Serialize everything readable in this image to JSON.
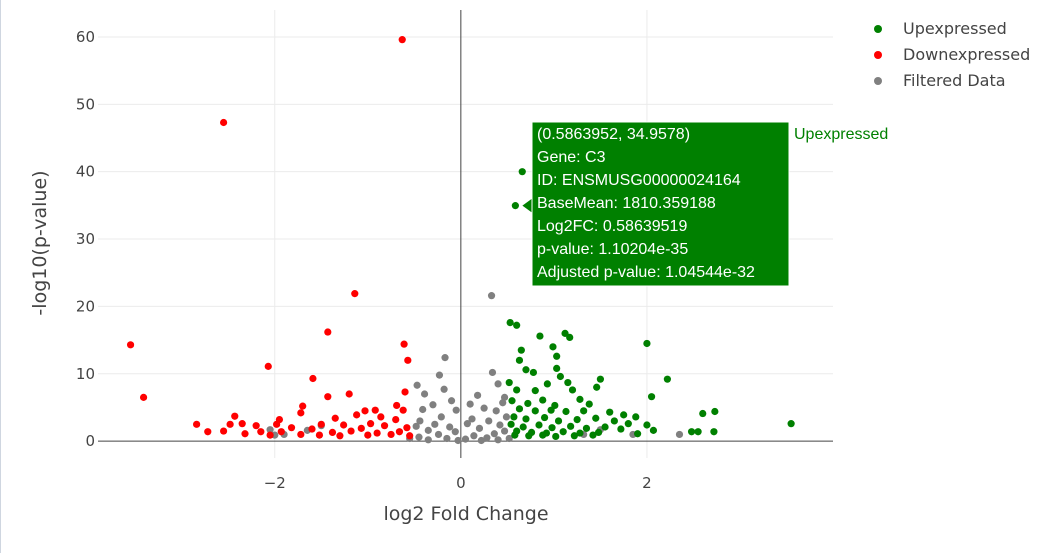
{
  "chart_data": {
    "type": "scatter",
    "xlabel": "log2 Fold Change",
    "ylabel": "-log10(p-value)",
    "xlim": [
      -3.9,
      4.0
    ],
    "ylim": [
      -2.5,
      64
    ],
    "x_ticks": [
      -2,
      0,
      2
    ],
    "y_ticks": [
      0,
      10,
      20,
      30,
      40,
      50,
      60
    ],
    "grid": true,
    "legend_position": "top-right",
    "series": [
      {
        "name": "Upexpressed",
        "color": "#008000",
        "points": [
          [
            0.586,
            34.96
          ],
          [
            0.66,
            40.0
          ],
          [
            0.53,
            17.6
          ],
          [
            0.6,
            17.2
          ],
          [
            0.85,
            15.6
          ],
          [
            1.12,
            16.0
          ],
          [
            1.17,
            15.4
          ],
          [
            0.65,
            13.5
          ],
          [
            0.99,
            14.0
          ],
          [
            1.03,
            12.6
          ],
          [
            2.0,
            14.5
          ],
          [
            0.63,
            12.0
          ],
          [
            0.7,
            10.6
          ],
          [
            1.03,
            10.8
          ],
          [
            0.78,
            10.2
          ],
          [
            1.07,
            9.6
          ],
          [
            0.52,
            8.7
          ],
          [
            0.93,
            8.5
          ],
          [
            1.15,
            8.7
          ],
          [
            1.5,
            9.2
          ],
          [
            2.22,
            9.2
          ],
          [
            0.6,
            7.6
          ],
          [
            0.8,
            7.5
          ],
          [
            1.2,
            7.6
          ],
          [
            1.46,
            8.0
          ],
          [
            2.05,
            6.6
          ],
          [
            0.55,
            6.0
          ],
          [
            0.72,
            5.6
          ],
          [
            0.88,
            6.1
          ],
          [
            1.01,
            5.3
          ],
          [
            1.28,
            6.2
          ],
          [
            1.38,
            5.5
          ],
          [
            0.63,
            4.8
          ],
          [
            0.8,
            4.5
          ],
          [
            0.97,
            4.6
          ],
          [
            1.13,
            4.4
          ],
          [
            1.32,
            4.5
          ],
          [
            1.6,
            4.3
          ],
          [
            1.75,
            3.9
          ],
          [
            1.88,
            3.6
          ],
          [
            2.6,
            4.1
          ],
          [
            2.73,
            4.4
          ],
          [
            0.57,
            3.6
          ],
          [
            0.7,
            3.3
          ],
          [
            0.9,
            3.5
          ],
          [
            1.05,
            3.0
          ],
          [
            1.25,
            3.2
          ],
          [
            1.45,
            3.4
          ],
          [
            1.65,
            3.0
          ],
          [
            1.8,
            2.6
          ],
          [
            0.54,
            2.5
          ],
          [
            0.67,
            2.1
          ],
          [
            0.84,
            2.4
          ],
          [
            0.98,
            2.0
          ],
          [
            1.18,
            2.2
          ],
          [
            1.35,
            1.9
          ],
          [
            1.55,
            2.1
          ],
          [
            1.72,
            1.8
          ],
          [
            2.0,
            2.4
          ],
          [
            2.48,
            1.4
          ],
          [
            2.55,
            1.4
          ],
          [
            2.72,
            1.4
          ],
          [
            0.6,
            1.5
          ],
          [
            0.76,
            1.3
          ],
          [
            0.92,
            1.2
          ],
          [
            1.1,
            1.4
          ],
          [
            1.28,
            1.2
          ],
          [
            1.48,
            1.3
          ],
          [
            1.9,
            1.1
          ],
          [
            2.07,
            1.6
          ],
          [
            3.55,
            2.6
          ],
          [
            0.58,
            0.9
          ],
          [
            0.73,
            0.8
          ],
          [
            0.88,
            0.9
          ],
          [
            1.02,
            0.7
          ],
          [
            1.22,
            0.8
          ],
          [
            1.42,
            0.9
          ]
        ]
      },
      {
        "name": "Downexpressed",
        "color": "#ff0000",
        "points": [
          [
            -0.63,
            59.6
          ],
          [
            -2.55,
            47.3
          ],
          [
            -1.14,
            21.9
          ],
          [
            -1.43,
            16.2
          ],
          [
            -0.61,
            14.4
          ],
          [
            -3.55,
            14.3
          ],
          [
            -0.57,
            12.0
          ],
          [
            -2.07,
            11.1
          ],
          [
            -1.59,
            9.3
          ],
          [
            -3.41,
            6.5
          ],
          [
            -1.43,
            6.6
          ],
          [
            -1.2,
            7.0
          ],
          [
            -0.6,
            7.3
          ],
          [
            -0.69,
            5.3
          ],
          [
            -1.7,
            5.2
          ],
          [
            -1.03,
            4.5
          ],
          [
            -0.92,
            4.6
          ],
          [
            -0.62,
            4.6
          ],
          [
            -1.72,
            4.2
          ],
          [
            -1.12,
            3.9
          ],
          [
            -0.86,
            3.6
          ],
          [
            -2.43,
            3.7
          ],
          [
            -1.95,
            3.2
          ],
          [
            -1.35,
            3.4
          ],
          [
            -0.7,
            3.2
          ],
          [
            -2.48,
            2.5
          ],
          [
            -2.2,
            2.3
          ],
          [
            -1.5,
            2.5
          ],
          [
            -1.26,
            2.4
          ],
          [
            -0.97,
            2.6
          ],
          [
            -2.84,
            2.5
          ],
          [
            -2.35,
            2.6
          ],
          [
            -1.82,
            2.0
          ],
          [
            -1.6,
            1.8
          ],
          [
            -1.07,
            1.9
          ],
          [
            -0.82,
            2.3
          ],
          [
            -0.58,
            2.0
          ],
          [
            -2.55,
            1.5
          ],
          [
            -2.15,
            1.4
          ],
          [
            -1.93,
            1.4
          ],
          [
            -1.38,
            1.3
          ],
          [
            -1.18,
            1.5
          ],
          [
            -0.9,
            1.2
          ],
          [
            -0.66,
            1.4
          ],
          [
            -2.72,
            1.4
          ],
          [
            -2.32,
            1.1
          ],
          [
            -2.05,
            0.9
          ],
          [
            -1.72,
            1.0
          ],
          [
            -1.52,
            0.9
          ],
          [
            -1.3,
            0.8
          ],
          [
            -1.0,
            0.9
          ],
          [
            -0.75,
            1.0
          ],
          [
            -0.55,
            0.8
          ],
          [
            -1.98,
            2.5
          ]
        ]
      },
      {
        "name": "Filtered Data",
        "color": "#808080",
        "points": [
          [
            0.33,
            21.6
          ],
          [
            -0.17,
            12.4
          ],
          [
            -0.23,
            9.8
          ],
          [
            0.34,
            10.2
          ],
          [
            0.4,
            8.5
          ],
          [
            -0.47,
            8.3
          ],
          [
            0.47,
            6.5
          ],
          [
            -0.39,
            7.0
          ],
          [
            0.18,
            6.8
          ],
          [
            -0.18,
            7.7
          ],
          [
            0.1,
            5.5
          ],
          [
            -0.1,
            6.0
          ],
          [
            0.45,
            5.7
          ],
          [
            -0.3,
            5.4
          ],
          [
            0.25,
            4.9
          ],
          [
            -0.05,
            4.6
          ],
          [
            0.38,
            4.5
          ],
          [
            -0.41,
            4.7
          ],
          [
            0.49,
            3.6
          ],
          [
            0.12,
            3.3
          ],
          [
            -0.21,
            3.6
          ],
          [
            0.3,
            3.0
          ],
          [
            -0.44,
            3.0
          ],
          [
            -1.5,
            2.3
          ],
          [
            -0.28,
            2.5
          ],
          [
            0.07,
            2.6
          ],
          [
            0.42,
            2.4
          ],
          [
            -0.12,
            2.1
          ],
          [
            0.2,
            1.9
          ],
          [
            -0.48,
            2.2
          ],
          [
            -2.05,
            1.7
          ],
          [
            -1.65,
            1.6
          ],
          [
            0.47,
            1.5
          ],
          [
            -0.35,
            1.6
          ],
          [
            0.36,
            1.1
          ],
          [
            -0.06,
            1.4
          ],
          [
            -2.0,
            0.9
          ],
          [
            -1.9,
            1.0
          ],
          [
            0.14,
            0.8
          ],
          [
            -0.24,
            1.0
          ],
          [
            0.28,
            0.5
          ],
          [
            -0.45,
            0.6
          ],
          [
            1.5,
            1.7
          ],
          [
            1.85,
            1.0
          ],
          [
            1.32,
            1.0
          ],
          [
            2.35,
            1.0
          ],
          [
            0.05,
            0.3
          ],
          [
            -0.15,
            0.4
          ],
          [
            0.4,
            0.2
          ],
          [
            -0.35,
            0.2
          ],
          [
            0.22,
            0.1
          ],
          [
            -0.03,
            0.1
          ],
          [
            0.52,
            0.4
          ],
          [
            -0.55,
            0.4
          ]
        ]
      }
    ],
    "tooltip": {
      "series": "Upexpressed",
      "point": [
        0.5863952,
        34.9578
      ],
      "lines": [
        "(0.5863952, 34.9578)",
        "Gene:  C3",
        "ID:  ENSMUSG00000024164",
        "BaseMean:  1810.359188",
        "Log2FC:  0.58639519",
        "p-value:  1.10204e-35",
        "Adjusted p-value:  1.04544e-32"
      ],
      "series_label": "Upexpressed",
      "color": "#008000"
    }
  }
}
